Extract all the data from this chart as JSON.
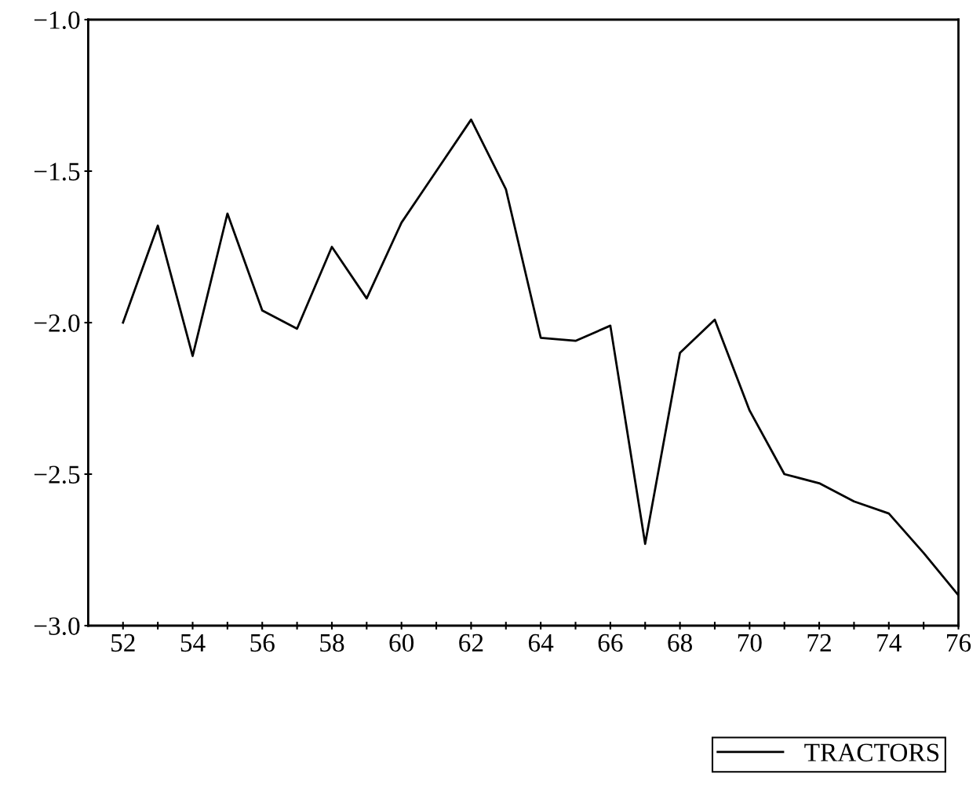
{
  "chart_data": {
    "type": "line",
    "x": [
      52,
      53,
      54,
      55,
      56,
      57,
      58,
      59,
      60,
      61,
      62,
      63,
      64,
      65,
      66,
      67,
      68,
      69,
      70,
      71,
      72,
      73,
      74,
      75,
      76
    ],
    "series": [
      {
        "name": "TRACTORS",
        "color": "#000000",
        "values": [
          -2.0,
          -1.68,
          -2.11,
          -1.64,
          -1.96,
          -2.02,
          -1.75,
          -1.92,
          -1.67,
          -1.5,
          -1.33,
          -1.56,
          -2.05,
          -2.06,
          -2.01,
          -2.73,
          -2.1,
          -1.99,
          -2.29,
          -2.5,
          -2.53,
          -2.59,
          -2.63,
          -2.76,
          -2.9
        ]
      }
    ],
    "xlim": [
      51,
      76
    ],
    "xticks": [
      52,
      {
        "value": 53,
        "label": null
      },
      54,
      {
        "value": 55,
        "label": null
      },
      56,
      {
        "value": 57,
        "label": null
      },
      58,
      {
        "value": 59,
        "label": null
      },
      60,
      {
        "value": 61,
        "label": null
      },
      62,
      {
        "value": 63,
        "label": null
      },
      64,
      {
        "value": 65,
        "label": null
      },
      66,
      {
        "value": 67,
        "label": null
      },
      68,
      {
        "value": 69,
        "label": null
      },
      70,
      {
        "value": 71,
        "label": null
      },
      72,
      {
        "value": 73,
        "label": null
      },
      74,
      {
        "value": 75,
        "label": null
      },
      76
    ],
    "ylim": [
      -3.0,
      -1.0
    ],
    "yticks": [
      {
        "value": -3.0,
        "label": "−3.0"
      },
      {
        "value": -2.5,
        "label": "−2.5"
      },
      {
        "value": -2.0,
        "label": "−2.0"
      },
      {
        "value": -1.5,
        "label": "−1.5"
      },
      {
        "value": -1.0,
        "label": "−1.0"
      }
    ],
    "grid": false,
    "legend": "bottom right",
    "marker": "none",
    "line_style": "solid"
  }
}
